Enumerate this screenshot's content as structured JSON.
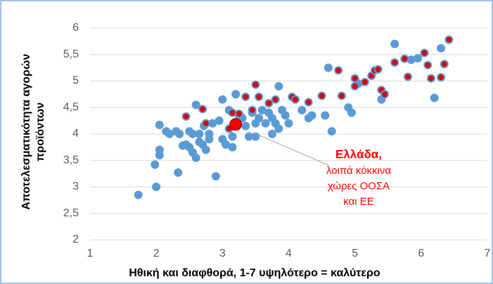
{
  "chart_data": {
    "type": "scatter",
    "xlabel": "Ηθική και διαφθορά, 1-7 υψηλότερο = καλύτερο",
    "ylabel": [
      "Αποτελεσματικότητα  αγορών",
      "προϊόντων"
    ],
    "annotation": {
      "title": "Ελλάδα,",
      "lines": [
        "λοιπά κόκκινα",
        "χώρες ΟΟΣΑ",
        "και ΕΕ"
      ],
      "color": "#ff0000"
    },
    "xlim": [
      1,
      7
    ],
    "xticks": [
      1,
      2,
      3,
      4,
      5,
      6,
      7
    ],
    "ylim": [
      2,
      6
    ],
    "yticks": [
      {
        "value": 2,
        "label": "2"
      },
      {
        "value": 2.5,
        "label": "2,5"
      },
      {
        "value": 3,
        "label": "3"
      },
      {
        "value": 3.5,
        "label": "3,5"
      },
      {
        "value": 4,
        "label": "4"
      },
      {
        "value": 4.5,
        "label": "4,5"
      },
      {
        "value": 5,
        "label": "5"
      },
      {
        "value": 5.5,
        "label": "5,5"
      },
      {
        "value": 6,
        "label": "6"
      }
    ],
    "grid": true,
    "series": [
      {
        "color": "#5b9bd5",
        "edgecolor": "#5b9bd5",
        "size": 5,
        "x": [
          1.73,
          2.0,
          1.98,
          2.05,
          2.05,
          2.05,
          2.15,
          2.2,
          2.3,
          2.33,
          2.35,
          2.4,
          2.45,
          2.5,
          2.5,
          2.55,
          2.55,
          2.6,
          2.6,
          2.65,
          2.65,
          2.7,
          2.72,
          2.75,
          2.8,
          2.8,
          2.85,
          2.9,
          2.95,
          3.0,
          3.0,
          3.05,
          3.1,
          3.1,
          3.15,
          3.15,
          3.2,
          3.25,
          3.3,
          3.35,
          3.4,
          3.45,
          3.5,
          3.5,
          3.55,
          3.6,
          3.65,
          3.7,
          3.75,
          3.75,
          3.8,
          3.85,
          3.85,
          3.9,
          3.95,
          4.0,
          4.2,
          4.3,
          4.35,
          4.55,
          4.6,
          4.65,
          4.9,
          4.95,
          5.05,
          5.4,
          5.6,
          5.85,
          5.95,
          6.2,
          6.3
        ],
        "values": [
          2.85,
          3.0,
          3.42,
          3.6,
          3.7,
          4.17,
          4.05,
          4.0,
          4.05,
          3.27,
          4.0,
          3.78,
          3.8,
          3.75,
          4.05,
          4.0,
          3.65,
          4.55,
          3.55,
          3.85,
          4.0,
          3.8,
          4.15,
          3.7,
          3.9,
          4.0,
          4.2,
          3.2,
          4.25,
          4.65,
          3.9,
          3.8,
          4.1,
          4.45,
          3.75,
          3.95,
          4.75,
          4.35,
          4.3,
          4.15,
          3.95,
          4.4,
          3.95,
          4.2,
          4.3,
          4.45,
          4.2,
          4.4,
          4.3,
          4.0,
          4.2,
          4.9,
          4.1,
          4.45,
          4.35,
          4.2,
          4.45,
          4.3,
          4.35,
          4.35,
          5.25,
          4.05,
          4.5,
          4.4,
          4.95,
          4.65,
          5.7,
          5.4,
          5.43,
          4.68,
          5.62
        ]
      },
      {
        "color": "#e00000",
        "edgecolor": "#5b9bd5",
        "size": 5,
        "x": [
          2.45,
          2.7,
          2.75,
          3.1,
          3.15,
          3.25,
          3.35,
          3.45,
          3.5,
          3.55,
          3.7,
          3.8,
          4.05,
          4.1,
          4.3,
          4.5,
          4.75,
          4.8,
          5.0,
          5.0,
          5.15,
          5.25,
          5.3,
          5.35,
          5.4,
          5.45,
          5.6,
          5.75,
          5.8,
          6.05,
          6.1,
          6.15,
          6.3,
          6.35,
          6.42
        ],
        "values": [
          4.33,
          4.47,
          4.2,
          4.1,
          4.4,
          4.38,
          4.7,
          4.45,
          4.93,
          4.7,
          4.58,
          4.65,
          4.7,
          4.65,
          4.6,
          4.72,
          5.2,
          4.72,
          5.05,
          4.9,
          4.98,
          5.1,
          5.2,
          5.22,
          4.83,
          4.75,
          5.35,
          5.42,
          5.08,
          5.53,
          5.3,
          5.05,
          5.07,
          5.32,
          5.78
        ]
      },
      {
        "color": "#ff0000",
        "edgecolor": "#c00000",
        "size": 8,
        "x": [
          3.2
        ],
        "values": [
          4.18
        ]
      }
    ]
  }
}
